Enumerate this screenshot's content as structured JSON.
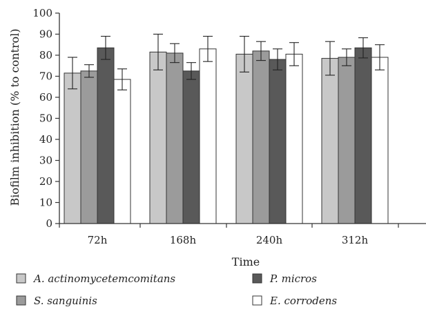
{
  "chart_data": {
    "type": "bar",
    "categories": [
      "72h",
      "168h",
      "240h",
      "312h"
    ],
    "series": [
      {
        "name": "A. actinomycetemcomitans",
        "color": "#c8c8c8",
        "values": [
          71.5,
          81.5,
          80.5,
          78.5
        ],
        "errors": [
          7.5,
          8.5,
          8.5,
          8.0
        ]
      },
      {
        "name": "S. sanguinis",
        "color": "#9b9b9b",
        "values": [
          72.5,
          81.0,
          82.0,
          79.0
        ],
        "errors": [
          3.0,
          4.5,
          4.5,
          4.0
        ]
      },
      {
        "name": "P. micros",
        "color": "#595959",
        "values": [
          83.5,
          72.5,
          78.0,
          83.5
        ],
        "errors": [
          5.5,
          4.0,
          5.0,
          4.8
        ]
      },
      {
        "name": "E. corrodens",
        "color": "#ffffff",
        "values": [
          68.5,
          83.0,
          80.5,
          79.0
        ],
        "errors": [
          5.0,
          6.0,
          5.5,
          6.0
        ]
      }
    ],
    "title": "",
    "xlabel": "Time",
    "ylabel": "Biofilm inhibition (% to control)",
    "ylim": [
      0,
      100
    ],
    "yticks": [
      0,
      10,
      20,
      30,
      40,
      50,
      60,
      70,
      80,
      90,
      100
    ],
    "grid": false,
    "legend_position": "bottom"
  }
}
